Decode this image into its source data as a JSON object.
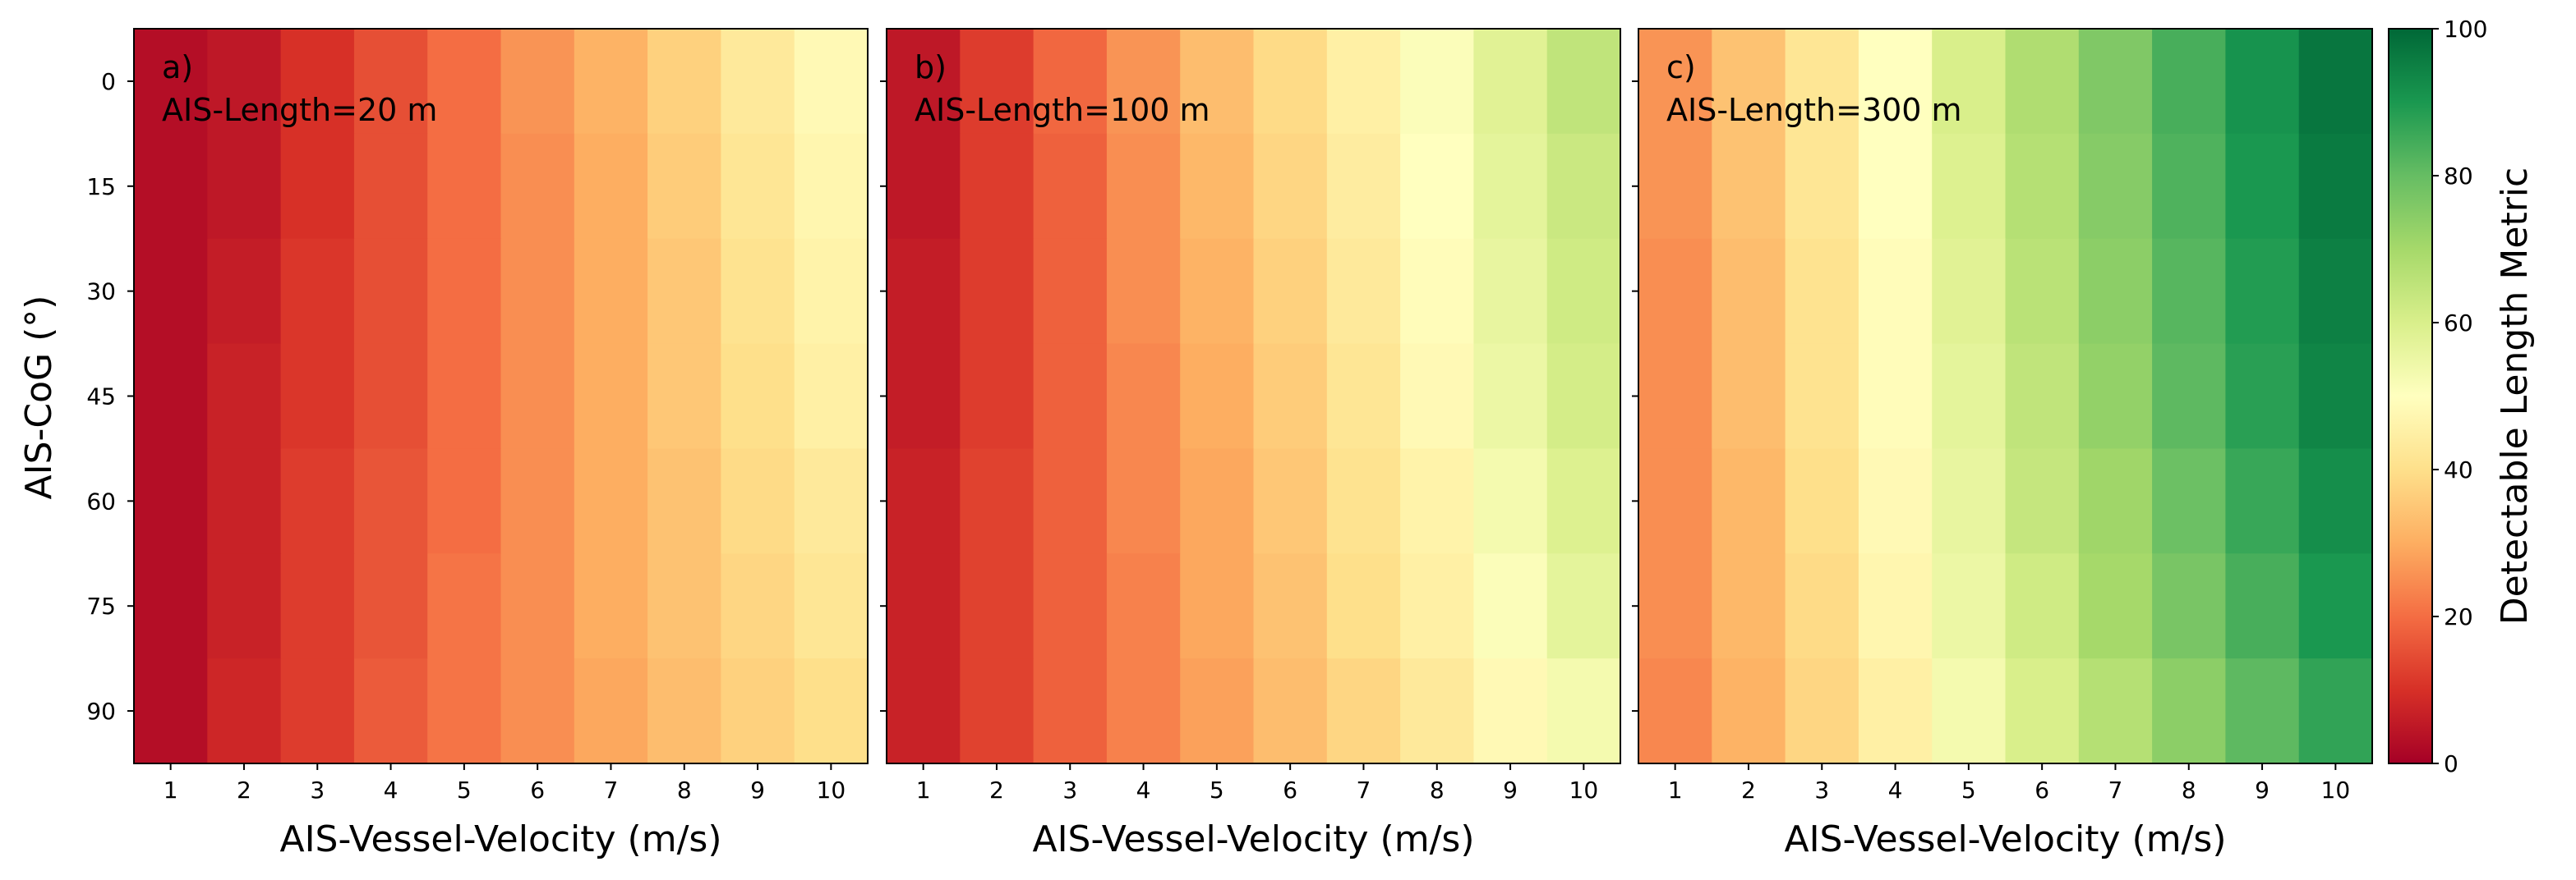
{
  "figure": {
    "colorbar": {
      "label": "Detectable Length Metric",
      "range": [
        0,
        100
      ],
      "ticks": [
        "0",
        "20",
        "40",
        "60",
        "80",
        "100"
      ],
      "colormap": "RdYlGn",
      "stops": [
        "#a50026",
        "#d73027",
        "#f46d43",
        "#fdae61",
        "#fee08b",
        "#ffffbf",
        "#d9ef8b",
        "#a6d96a",
        "#66bd63",
        "#1a9850",
        "#006837"
      ]
    },
    "shared_ylabel": "AIS-CoG (°)"
  },
  "chart_data": [
    {
      "type": "heatmap",
      "panel_label": "a)",
      "annotation": "AIS-Length=20 m",
      "xlabel": "AIS-Vessel-Velocity (m/s)",
      "ylabel": "AIS-CoG (°)",
      "x": [
        "1",
        "2",
        "3",
        "4",
        "5",
        "6",
        "7",
        "8",
        "9",
        "10"
      ],
      "y": [
        "0",
        "15",
        "30",
        "45",
        "60",
        "75",
        "90"
      ],
      "values": [
        [
          3,
          5,
          10,
          15,
          20,
          26,
          31,
          37,
          43,
          48
        ],
        [
          3,
          5,
          10,
          15,
          20,
          25,
          30,
          36,
          42,
          47
        ],
        [
          3,
          6,
          11,
          15,
          20,
          25,
          30,
          35,
          41,
          46
        ],
        [
          3,
          7,
          11,
          15,
          20,
          25,
          30,
          35,
          40,
          45
        ],
        [
          3,
          7,
          12,
          16,
          20,
          25,
          30,
          34,
          39,
          43
        ],
        [
          3,
          7,
          12,
          16,
          21,
          25,
          30,
          34,
          38,
          42
        ],
        [
          3,
          8,
          12,
          17,
          21,
          25,
          29,
          33,
          37,
          40
        ]
      ]
    },
    {
      "type": "heatmap",
      "panel_label": "b)",
      "annotation": "AIS-Length=100 m",
      "xlabel": "AIS-Vessel-Velocity (m/s)",
      "ylabel": "",
      "x": [
        "1",
        "2",
        "3",
        "4",
        "5",
        "6",
        "7",
        "8",
        "9",
        "10"
      ],
      "y": [
        "0",
        "15",
        "30",
        "45",
        "60",
        "75",
        "90"
      ],
      "values": [
        [
          5,
          12,
          19,
          26,
          33,
          39,
          45,
          51,
          58,
          65
        ],
        [
          5,
          12,
          18,
          25,
          32,
          38,
          44,
          50,
          57,
          63
        ],
        [
          6,
          12,
          18,
          25,
          31,
          37,
          43,
          49,
          56,
          62
        ],
        [
          6,
          12,
          18,
          24,
          30,
          36,
          42,
          48,
          55,
          61
        ],
        [
          7,
          13,
          18,
          24,
          29,
          35,
          41,
          46,
          53,
          59
        ],
        [
          7,
          13,
          18,
          23,
          29,
          34,
          40,
          45,
          51,
          57
        ],
        [
          7,
          13,
          18,
          23,
          28,
          33,
          38,
          43,
          48,
          53
        ]
      ]
    },
    {
      "type": "heatmap",
      "panel_label": "c)",
      "annotation": "AIS-Length=300 m",
      "xlabel": "AIS-Vessel-Velocity (m/s)",
      "ylabel": "",
      "x": [
        "1",
        "2",
        "3",
        "4",
        "5",
        "6",
        "7",
        "8",
        "9",
        "10"
      ],
      "y": [
        "0",
        "15",
        "30",
        "45",
        "60",
        "75",
        "90"
      ],
      "values": [
        [
          26,
          34,
          42,
          50,
          60,
          68,
          76,
          84,
          91,
          97
        ],
        [
          26,
          34,
          42,
          50,
          59,
          67,
          75,
          83,
          90,
          96
        ],
        [
          25,
          33,
          41,
          49,
          58,
          66,
          74,
          82,
          89,
          95
        ],
        [
          25,
          33,
          41,
          49,
          57,
          65,
          73,
          81,
          88,
          94
        ],
        [
          25,
          32,
          40,
          48,
          56,
          64,
          71,
          79,
          86,
          92
        ],
        [
          25,
          32,
          39,
          47,
          55,
          62,
          70,
          77,
          84,
          90
        ],
        [
          24,
          31,
          38,
          45,
          53,
          60,
          67,
          74,
          81,
          87
        ]
      ]
    }
  ]
}
